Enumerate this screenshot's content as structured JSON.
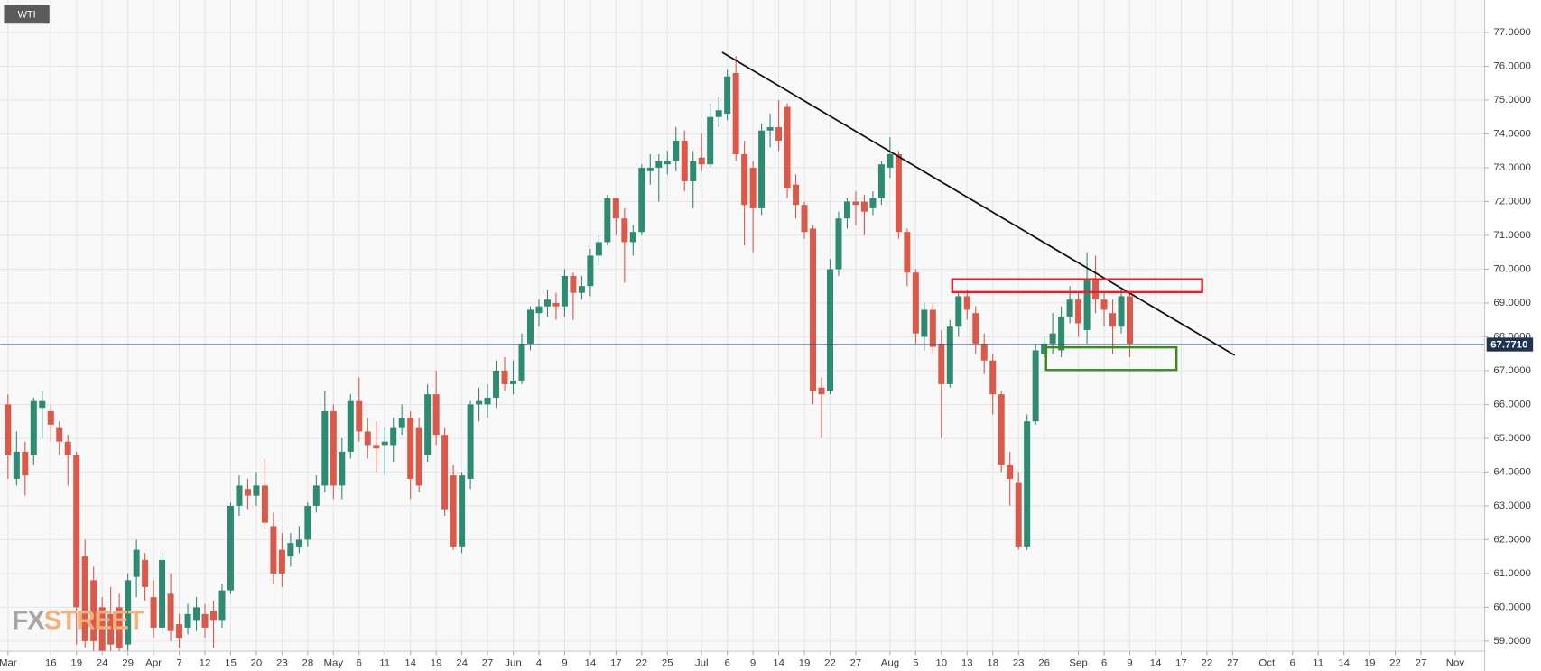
{
  "chart_data": {
    "type": "candlestick",
    "title": "WTI",
    "watermark": [
      "FX",
      "STREET"
    ],
    "up_color": "#2f8a72",
    "down_color": "#d9594a",
    "grid": true,
    "categories": [
      "Mar",
      null,
      null,
      null,
      null,
      "16",
      null,
      null,
      "19",
      null,
      null,
      "24",
      null,
      null,
      "29",
      null,
      null,
      "Apr",
      null,
      null,
      "7",
      null,
      null,
      "12",
      null,
      null,
      "15",
      null,
      null,
      "20",
      null,
      null,
      "23",
      null,
      null,
      "28",
      null,
      null,
      "May",
      null,
      null,
      "6",
      null,
      null,
      "11",
      null,
      null,
      "14",
      null,
      null,
      "19",
      null,
      null,
      "24",
      null,
      null,
      "27",
      null,
      null,
      "Jun",
      null,
      null,
      "4",
      null,
      null,
      "9",
      null,
      null,
      "14",
      null,
      null,
      "17",
      null,
      null,
      "22",
      null,
      null,
      "25",
      null,
      null,
      null,
      "Jul",
      null,
      null,
      "6",
      null,
      null,
      "9",
      null,
      null,
      "14",
      null,
      null,
      "19",
      null,
      null,
      "22",
      null,
      null,
      "27",
      null,
      null,
      null,
      "Aug",
      null,
      null,
      "5",
      null,
      null,
      "10",
      null,
      null,
      "13",
      null,
      null,
      "18",
      null,
      null,
      "23",
      null,
      null,
      "26",
      null,
      null,
      null,
      "Sep",
      null,
      null,
      "6",
      null,
      null,
      "9",
      null,
      null,
      "14",
      null,
      null,
      "17",
      null,
      null,
      "22",
      null,
      null,
      "27",
      null,
      null,
      null,
      "Oct",
      null,
      null,
      "6",
      null,
      null,
      "11",
      null,
      null,
      "14",
      null,
      null,
      "19",
      null,
      null,
      "22",
      null,
      null,
      "27",
      null,
      null,
      null,
      "Nov",
      null,
      null,
      null
    ],
    "open": [
      66.0,
      63.8,
      64.6,
      64.5,
      65.9,
      65.8,
      65.3,
      64.9,
      64.5,
      61.5,
      60.8,
      60.0,
      59.8,
      60.0,
      58.9,
      60.9,
      61.4,
      60.3,
      59.4,
      60.4,
      59.5,
      59.4,
      59.6,
      59.8,
      59.9,
      59.6,
      60.5,
      63.0,
      63.5,
      63.3,
      63.6,
      62.4,
      61.7,
      61.5,
      61.8,
      62.0,
      63.0,
      63.6,
      65.8,
      63.6,
      64.6,
      66.1,
      65.2,
      64.8,
      64.8,
      64.8,
      65.3,
      65.6,
      65.3,
      64.5,
      66.3,
      65.1,
      63.9,
      61.8,
      63.8,
      66.0,
      66.0,
      66.2,
      67.0,
      66.6,
      66.7,
      67.8,
      68.7,
      68.9,
      69.0,
      68.9,
      69.8,
      69.3,
      69.5,
      70.4,
      70.8,
      72.1,
      71.5,
      70.8,
      71.1,
      72.9,
      73.0,
      73.1,
      73.2,
      73.8,
      72.6,
      73.3,
      73.1,
      74.5,
      74.6,
      75.8,
      73.4,
      73.0,
      71.8,
      74.1,
      74.2,
      74.8,
      72.5,
      71.9,
      71.2,
      66.5,
      66.4,
      70.0,
      71.5,
      72.0,
      72.0,
      71.8,
      72.1,
      73.0,
      73.4,
      71.1,
      69.9,
      68.0,
      68.8,
      67.8,
      66.6,
      68.3,
      69.2,
      68.7,
      67.8,
      67.3,
      66.3,
      64.2,
      63.7,
      61.8,
      65.5,
      67.5,
      67.8,
      67.6,
      68.6,
      69.1,
      68.2,
      69.7,
      69.1,
      68.7,
      68.3,
      69.2,
      null,
      null,
      null,
      null,
      null,
      null,
      null,
      null,
      null,
      null,
      null,
      null,
      null,
      null,
      null,
      null,
      null,
      null,
      null,
      null,
      null,
      null,
      null,
      null,
      null,
      null,
      null,
      null,
      null,
      null,
      null,
      null,
      null,
      null,
      null,
      null,
      null,
      null,
      null,
      null,
      null
    ],
    "high": [
      66.3,
      65.2,
      64.9,
      66.2,
      66.4,
      66.0,
      65.5,
      65.1,
      64.6,
      62.0,
      61.2,
      60.3,
      60.6,
      60.4,
      61.0,
      62.0,
      61.6,
      60.8,
      61.6,
      61.0,
      59.8,
      60.1,
      60.3,
      60.1,
      60.2,
      60.7,
      63.1,
      63.9,
      63.8,
      64.0,
      64.4,
      62.8,
      62.2,
      62.2,
      62.4,
      63.1,
      63.9,
      66.4,
      66.0,
      65.0,
      66.3,
      66.8,
      65.6,
      65.5,
      65.3,
      65.6,
      66.0,
      65.8,
      65.6,
      66.6,
      67.0,
      65.3,
      64.2,
      64.0,
      66.1,
      66.5,
      66.6,
      67.3,
      67.4,
      67.3,
      68.1,
      68.9,
      69.1,
      69.4,
      69.3,
      70.0,
      69.9,
      69.8,
      70.6,
      71.0,
      72.2,
      72.1,
      71.8,
      71.3,
      73.1,
      73.4,
      73.4,
      73.5,
      74.2,
      74.1,
      73.5,
      74.0,
      74.9,
      75.1,
      75.9,
      76.3,
      73.8,
      73.2,
      74.3,
      74.6,
      75.0,
      74.9,
      72.8,
      72.0,
      71.3,
      66.8,
      70.3,
      71.7,
      72.1,
      72.3,
      72.2,
      72.3,
      73.2,
      73.9,
      73.5,
      71.2,
      70.0,
      69.0,
      69.0,
      68.2,
      68.5,
      69.3,
      69.4,
      68.9,
      68.1,
      67.5,
      66.4,
      64.6,
      64.0,
      65.7,
      67.8,
      68.0,
      68.7,
      68.9,
      69.5,
      69.3,
      70.5,
      70.4,
      69.3,
      69.1,
      69.4,
      69.3,
      null,
      null,
      null,
      null,
      null,
      null,
      null,
      null,
      null,
      null,
      null,
      null,
      null,
      null,
      null,
      null,
      null,
      null,
      null,
      null,
      null,
      null,
      null,
      null,
      null,
      null,
      null,
      null,
      null,
      null,
      null,
      null,
      null,
      null,
      null,
      null,
      null,
      null,
      null,
      null,
      null
    ],
    "low": [
      63.8,
      63.6,
      63.3,
      64.2,
      65.0,
      64.9,
      64.5,
      63.6,
      58.9,
      58.8,
      58.7,
      58.7,
      58.7,
      58.7,
      58.7,
      60.3,
      60.2,
      59.1,
      59.2,
      59.0,
      58.8,
      59.2,
      59.3,
      59.1,
      58.8,
      59.4,
      60.4,
      62.7,
      62.9,
      63.0,
      62.3,
      60.7,
      60.6,
      61.2,
      61.6,
      61.8,
      62.8,
      63.4,
      63.2,
      63.2,
      64.4,
      64.9,
      64.4,
      64.0,
      63.9,
      64.3,
      65.1,
      63.2,
      63.4,
      64.3,
      64.8,
      62.7,
      61.7,
      61.6,
      63.5,
      65.5,
      65.6,
      65.9,
      66.4,
      66.3,
      66.6,
      67.6,
      68.3,
      68.6,
      68.5,
      68.6,
      68.5,
      69.1,
      69.2,
      70.1,
      70.7,
      71.0,
      69.6,
      70.4,
      71.0,
      72.5,
      72.0,
      72.8,
      72.9,
      72.3,
      71.8,
      72.9,
      73.0,
      74.2,
      74.4,
      73.2,
      70.7,
      70.5,
      71.6,
      73.6,
      73.5,
      72.1,
      71.5,
      70.9,
      66.0,
      65.0,
      66.3,
      69.8,
      71.2,
      71.3,
      71.0,
      71.6,
      71.9,
      72.7,
      70.9,
      69.5,
      67.8,
      67.6,
      67.5,
      65.0,
      66.5,
      68.0,
      68.5,
      67.5,
      66.9,
      65.7,
      64.0,
      63.0,
      61.7,
      61.7,
      65.4,
      67.4,
      67.5,
      67.4,
      68.4,
      68.0,
      67.8,
      68.7,
      68.3,
      67.5,
      68.1,
      67.4,
      null,
      null,
      null,
      null,
      null,
      null,
      null,
      null,
      null,
      null,
      null,
      null,
      null,
      null,
      null,
      null,
      null,
      null,
      null,
      null,
      null,
      null,
      null,
      null,
      null,
      null,
      null,
      null,
      null,
      null,
      null,
      null,
      null,
      null,
      null,
      null,
      null,
      null,
      null,
      null,
      null
    ],
    "close": [
      64.5,
      64.6,
      63.9,
      66.1,
      66.1,
      65.4,
      64.9,
      64.5,
      60.0,
      59.0,
      59.0,
      58.7,
      58.9,
      58.8,
      60.8,
      61.7,
      60.6,
      59.4,
      61.4,
      59.3,
      59.1,
      59.8,
      60.0,
      59.4,
      59.6,
      60.5,
      63.0,
      63.6,
      63.3,
      63.6,
      62.5,
      61.0,
      61.0,
      61.9,
      62.0,
      63.0,
      63.6,
      65.8,
      63.6,
      64.6,
      66.1,
      65.2,
      64.8,
      64.7,
      64.9,
      65.3,
      65.6,
      63.8,
      63.6,
      66.3,
      65.1,
      62.9,
      61.8,
      63.9,
      66.0,
      66.1,
      66.2,
      67.0,
      66.6,
      66.7,
      67.8,
      68.8,
      68.9,
      69.1,
      68.9,
      69.8,
      69.3,
      69.5,
      70.4,
      70.8,
      72.1,
      71.5,
      70.8,
      71.1,
      73.0,
      73.0,
      73.2,
      73.2,
      73.8,
      72.6,
      73.2,
      73.1,
      74.5,
      74.7,
      75.7,
      73.4,
      71.9,
      71.8,
      74.1,
      74.2,
      73.8,
      72.4,
      71.9,
      71.1,
      66.4,
      66.3,
      70.0,
      71.5,
      72.0,
      71.9,
      71.7,
      72.1,
      73.1,
      73.4,
      71.1,
      69.9,
      68.1,
      68.8,
      67.7,
      66.6,
      68.3,
      69.2,
      68.8,
      67.8,
      67.3,
      66.3,
      64.2,
      63.8,
      61.8,
      65.5,
      67.6,
      67.8,
      68.1,
      68.6,
      69.1,
      68.4,
      69.7,
      69.1,
      68.8,
      68.3,
      69.2,
      67.8,
      null,
      null,
      null,
      null,
      null,
      null,
      null,
      null,
      null,
      null,
      null,
      null,
      null,
      null,
      null,
      null,
      null,
      null,
      null,
      null,
      null,
      null,
      null,
      null,
      null,
      null,
      null,
      null,
      null,
      null,
      null,
      null,
      null,
      null,
      null,
      null,
      null,
      null,
      null,
      null,
      null
    ],
    "last_price": {
      "value": 67.771,
      "label": "67.7710"
    },
    "ylim": [
      58.7,
      77.96
    ],
    "yticks": [
      {
        "value": 59,
        "label": "59.0000"
      },
      {
        "value": 60,
        "label": "60.0000"
      },
      {
        "value": 61,
        "label": "61.0000"
      },
      {
        "value": 62,
        "label": "62.0000"
      },
      {
        "value": 63,
        "label": "63.0000"
      },
      {
        "value": 64,
        "label": "64.0000"
      },
      {
        "value": 65,
        "label": "65.0000"
      },
      {
        "value": 66,
        "label": "66.0000"
      },
      {
        "value": 67,
        "label": "67.0000"
      },
      {
        "value": 68,
        "label": "68.0000"
      },
      {
        "value": 69,
        "label": "69.0000"
      },
      {
        "value": 70,
        "label": "70.0000"
      },
      {
        "value": 71,
        "label": "71.0000"
      },
      {
        "value": 72,
        "label": "72.0000"
      },
      {
        "value": 73,
        "label": "73.0000"
      },
      {
        "value": 74,
        "label": "74.0000"
      },
      {
        "value": 75,
        "label": "75.0000"
      },
      {
        "value": 76,
        "label": "76.0000"
      },
      {
        "value": 77,
        "label": "77.0000"
      }
    ]
  }
}
